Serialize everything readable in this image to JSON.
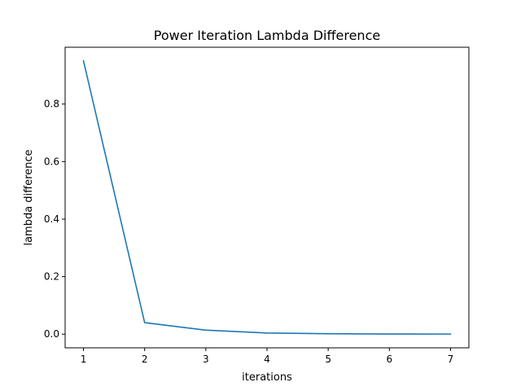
{
  "chart_data": {
    "type": "line",
    "title": "Power Iteration Lambda Difference",
    "xlabel": "iterations",
    "ylabel": "lambda difference",
    "xlim": [
      0.7,
      7.3
    ],
    "ylim": [
      -0.0475,
      0.9975
    ],
    "xticks": [
      1,
      2,
      3,
      4,
      5,
      6,
      7
    ],
    "yticks": [
      0.0,
      0.2,
      0.4,
      0.6,
      0.8
    ],
    "ytick_labels": [
      "0.0",
      "0.2",
      "0.4",
      "0.6",
      "0.8"
    ],
    "grid": false,
    "series": [
      {
        "color": "#1f77b4",
        "x": [
          1,
          2,
          3,
          4,
          5,
          6,
          7
        ],
        "y": [
          0.95,
          0.04,
          0.014,
          0.004,
          0.0015,
          0.0006,
          0.0003
        ]
      }
    ]
  }
}
